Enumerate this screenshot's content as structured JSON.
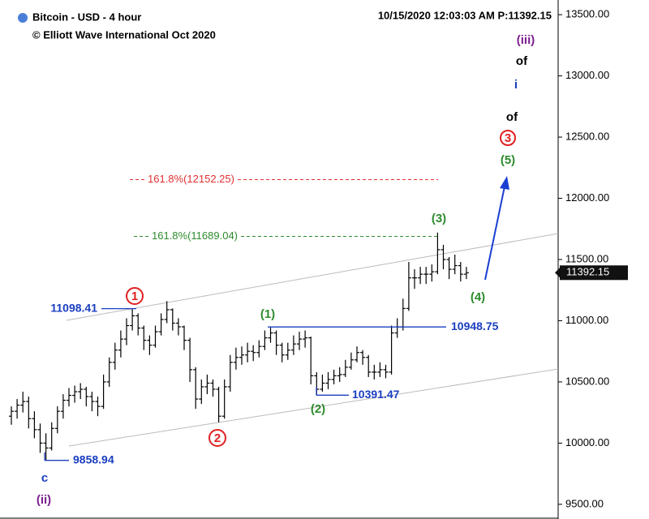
{
  "chart_data": {
    "type": "ohlc",
    "title": "Bitcoin - USD - 4 hour",
    "subtitle": "© Elliott Wave International Oct 2020",
    "timestamp": "10/15/2020 12:03:03 AM  P:11392.15",
    "last_price": 11392.15,
    "ylim": [
      9380,
      13620
    ],
    "yticks": [
      {
        "value": 13500,
        "label": "13500.00"
      },
      {
        "value": 13000,
        "label": "13000.00"
      },
      {
        "value": 12500,
        "label": "12500.00"
      },
      {
        "value": 12000,
        "label": "12000.00"
      },
      {
        "value": 11500,
        "label": "11500.00"
      },
      {
        "value": 11000,
        "label": "11000.00"
      },
      {
        "value": 10500,
        "label": "10500.00"
      },
      {
        "value": 10000,
        "label": "10000.00"
      },
      {
        "value": 9500,
        "label": "9500.00"
      }
    ],
    "color": "#000000",
    "open": [
      10220,
      10260,
      10310,
      10340,
      10200,
      10110,
      10000,
      9960,
      10120,
      10260,
      10350,
      10390,
      10420,
      10440,
      10380,
      10340,
      10300,
      10500,
      10660,
      10760,
      10850,
      10960,
      11040,
      10940,
      10840,
      10800,
      10910,
      11010,
      11090,
      10980,
      10950,
      10840,
      10600,
      10360,
      10460,
      10490,
      10440,
      10220,
      10460,
      10660,
      10700,
      10720,
      10750,
      10740,
      10790,
      10860,
      10900,
      10800,
      10720,
      10760,
      10810,
      10850,
      10860,
      10550,
      10440,
      10490,
      10520,
      10550,
      10560,
      10620,
      10680,
      10740,
      10700,
      10580,
      10580,
      10600,
      10580,
      10900,
      10950,
      11100,
      11350,
      11350,
      11380,
      11380,
      11400,
      11580,
      11500,
      11420,
      11450,
      11380
    ],
    "high": [
      10300,
      10360,
      10420,
      10380,
      10260,
      10160,
      10080,
      10170,
      10300,
      10400,
      10450,
      10470,
      10490,
      10460,
      10420,
      10380,
      10560,
      10700,
      10820,
      10920,
      11020,
      11098.41,
      11060,
      10960,
      10880,
      10960,
      11060,
      11160,
      11100,
      11020,
      10960,
      10860,
      10620,
      10520,
      10560,
      10520,
      10460,
      10520,
      10720,
      10780,
      10790,
      10820,
      10800,
      10840,
      10920,
      10948.75,
      10920,
      10820,
      10820,
      10880,
      10910,
      10920,
      10870,
      10580,
      10560,
      10580,
      10600,
      10620,
      10680,
      10740,
      10790,
      10760,
      10720,
      10640,
      10660,
      10640,
      10960,
      11020,
      11180,
      11480,
      11420,
      11440,
      11440,
      11460,
      11720,
      11620,
      11520,
      11540,
      11480,
      11440
    ],
    "low": [
      10150,
      10200,
      10250,
      10120,
      10040,
      9920,
      9858.94,
      9940,
      10080,
      10200,
      10300,
      10330,
      10360,
      10300,
      10260,
      10220,
      10280,
      10460,
      10600,
      10700,
      10800,
      10920,
      10880,
      10760,
      10720,
      10780,
      10880,
      10980,
      10920,
      10880,
      10760,
      10500,
      10280,
      10320,
      10400,
      10380,
      10170,
      10200,
      10420,
      10600,
      10640,
      10660,
      10670,
      10700,
      10760,
      10820,
      10720,
      10660,
      10680,
      10720,
      10760,
      10780,
      10480,
      10391.47,
      10420,
      10440,
      10480,
      10500,
      10540,
      10600,
      10660,
      10640,
      10540,
      10520,
      10540,
      10530,
      10560,
      10860,
      10920,
      11080,
      11260,
      11300,
      11300,
      11320,
      11380,
      11420,
      11340,
      11380,
      11320,
      11340
    ],
    "close": [
      10260,
      10310,
      10340,
      10200,
      10110,
      10000,
      9960,
      10120,
      10260,
      10350,
      10390,
      10420,
      10440,
      10380,
      10340,
      10300,
      10500,
      10660,
      10760,
      10850,
      10960,
      11040,
      10940,
      10840,
      10800,
      10910,
      11010,
      11090,
      10980,
      10950,
      10840,
      10600,
      10360,
      10460,
      10490,
      10440,
      10220,
      10460,
      10660,
      10700,
      10720,
      10750,
      10740,
      10790,
      10860,
      10900,
      10800,
      10720,
      10760,
      10810,
      10850,
      10860,
      10550,
      10440,
      10490,
      10520,
      10550,
      10560,
      10620,
      10680,
      10740,
      10700,
      10580,
      10580,
      10600,
      10580,
      10900,
      10950,
      11100,
      11350,
      11350,
      11380,
      11380,
      11400,
      11580,
      11500,
      11420,
      11450,
      11380,
      11392.15
    ],
    "levels": [
      11098.41,
      9858.94,
      10948.75,
      10391.47
    ],
    "fib_levels": [
      {
        "value": 12152.25,
        "label": "161.8%(12152.25)",
        "color": "#e03030"
      },
      {
        "value": 11689.04,
        "label": "161.8%(11689.04)",
        "color": "#2e8b2e"
      }
    ],
    "wave_labels": [
      "(iii)",
      "of",
      "i",
      "of",
      "3",
      "(5)",
      "(3)",
      "(4)",
      "(1)",
      "(2)",
      "1",
      "2",
      "c",
      "(ii)"
    ]
  }
}
